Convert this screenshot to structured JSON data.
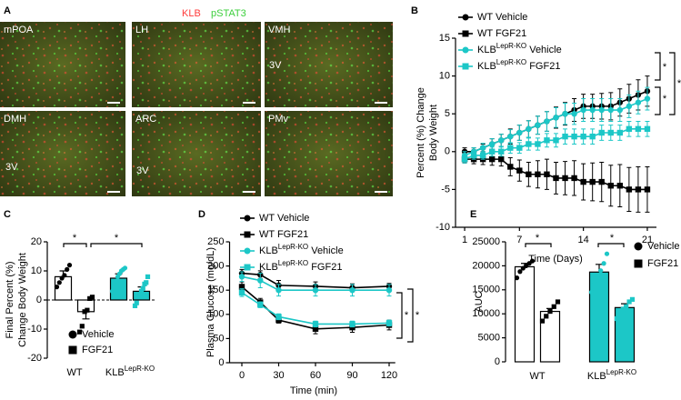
{
  "micrographs": {
    "panel": "A",
    "title": [
      "KLB",
      "pSTAT3"
    ],
    "title_colors": [
      "#ff3b3b",
      "#3ccf3c"
    ],
    "tiles": [
      {
        "label": "mPOA"
      },
      {
        "label": "LH"
      },
      {
        "label": "VMH",
        "marker": "3V"
      },
      {
        "label": "DMH",
        "marker": "3V"
      },
      {
        "label": "ARC",
        "marker": "3V"
      },
      {
        "label": "PMv"
      }
    ]
  },
  "chart_data": [
    {
      "type": "line",
      "panel": "B",
      "x": [
        1,
        2,
        3,
        4,
        5,
        6,
        7,
        8,
        9,
        10,
        11,
        12,
        13,
        14,
        15,
        16,
        17,
        18,
        19,
        20,
        21
      ],
      "xlim": [
        0,
        22
      ],
      "xticks": [
        1,
        7,
        14,
        21
      ],
      "ylim": [
        -10,
        15
      ],
      "yticks": [
        -10,
        -5,
        0,
        5,
        10,
        15
      ],
      "xlabel": "Time (Days)",
      "ylabel": [
        "Percent (%) Change",
        "Body Weight"
      ],
      "series": [
        {
          "name": "WT Vehicle",
          "color": "#000000",
          "marker": "circle",
          "values": [
            0,
            0,
            0.5,
            1,
            1.5,
            2,
            2.5,
            3,
            3.5,
            4,
            4.5,
            5,
            5.5,
            6,
            6,
            6,
            6,
            6.5,
            7,
            7.5,
            8
          ],
          "errors": [
            0.5,
            0.5,
            0.5,
            0.7,
            0.8,
            1,
            1,
            1.1,
            1.2,
            1.3,
            1.4,
            1.5,
            1.5,
            1.6,
            1.6,
            1.7,
            1.8,
            1.8,
            1.9,
            2,
            2
          ]
        },
        {
          "name": "WT FGF21",
          "color": "#000000",
          "marker": "square",
          "values": [
            -1,
            -1,
            -1,
            -1,
            -1,
            -2,
            -2.5,
            -3,
            -3,
            -3,
            -3.5,
            -3.5,
            -3.5,
            -4,
            -4,
            -4,
            -4.5,
            -4.5,
            -5,
            -5,
            -5
          ],
          "errors": [
            0.5,
            0.6,
            0.7,
            0.8,
            0.9,
            1.2,
            1.4,
            1.6,
            1.8,
            2,
            2.1,
            2.2,
            2.3,
            2.4,
            2.5,
            2.6,
            2.7,
            2.8,
            2.9,
            3,
            3
          ]
        },
        {
          "name": [
            "KLB",
            "LepR-KO",
            " Vehicle"
          ],
          "color": "#1cc7c7",
          "marker": "circle",
          "values": [
            -0.5,
            0,
            0.5,
            1,
            1.5,
            2,
            2.5,
            3,
            3.5,
            4,
            4.5,
            5,
            5,
            5.5,
            5.5,
            5.5,
            5.5,
            5.5,
            6,
            6.5,
            7
          ],
          "errors": [
            0.5,
            0.5,
            0.6,
            0.7,
            0.8,
            0.9,
            1,
            1.1,
            1.2,
            1.3,
            1.3,
            1.4,
            1.4,
            1.5,
            1.5,
            1.5,
            1.5,
            1.5,
            1.5,
            1.5,
            1.5
          ]
        },
        {
          "name": [
            "KLB",
            "LepR-KO",
            " FGF21"
          ],
          "color": "#1cc7c7",
          "marker": "square",
          "values": [
            -1,
            -0.5,
            -0.5,
            0,
            0,
            0.5,
            0.5,
            1,
            1,
            1.5,
            1.5,
            2,
            2,
            2,
            2,
            2.5,
            2.5,
            2.5,
            3,
            3,
            3
          ],
          "errors": [
            0.5,
            0.5,
            0.5,
            0.6,
            0.6,
            0.7,
            0.7,
            0.8,
            0.8,
            0.9,
            0.9,
            1,
            1,
            1,
            1,
            1,
            1,
            1,
            1,
            1,
            1
          ]
        }
      ],
      "annotations": [
        "*",
        "*",
        "*"
      ]
    },
    {
      "type": "bar",
      "panel": "C",
      "categories": [
        "WT",
        [
          "KLB",
          "LepR-KO"
        ]
      ],
      "ylim": [
        -20,
        20
      ],
      "yticks": [
        -20,
        -10,
        0,
        10,
        20
      ],
      "ylabel": [
        "Final Percent (%)",
        "Change Body Weight"
      ],
      "zero_line": true,
      "bar_colors": [
        "#ffffff",
        "#1cc7c7"
      ],
      "point_colors": [
        "#000000",
        "#1cc7c7"
      ],
      "series": [
        {
          "name": "Vehicle",
          "marker": "circle",
          "values": [
            8,
            7.5
          ],
          "errors": [
            2,
            1.5
          ],
          "points": [
            [
              4.5,
              6,
              7.5,
              8.5,
              10.5,
              12
            ],
            [
              3,
              5,
              6.5,
              8,
              9,
              10,
              10.5,
              11
            ]
          ]
        },
        {
          "name": "FGF21",
          "marker": "square",
          "values": [
            -4,
            3
          ],
          "errors": [
            2.5,
            1.5
          ],
          "points": [
            [
              -11,
              -9,
              -4,
              -3.5,
              0.5,
              1
            ],
            [
              -2,
              -1,
              1.5,
              2,
              3,
              4,
              5.5,
              6,
              8
            ]
          ]
        }
      ],
      "annotations": [
        "*",
        "*"
      ]
    },
    {
      "type": "line",
      "panel": "D",
      "x": [
        0,
        15,
        30,
        60,
        90,
        120
      ],
      "xlim": [
        -10,
        125
      ],
      "xticks": [
        0,
        30,
        60,
        90,
        120
      ],
      "ylim": [
        0,
        250
      ],
      "yticks": [
        0,
        50,
        100,
        150,
        200,
        250
      ],
      "xlabel": "Time (min)",
      "ylabel": [
        "Plasma Glucose (mg/dL)"
      ],
      "series": [
        {
          "name": "WT Vehicle",
          "color": "#000000",
          "marker": "circle",
          "values": [
            185,
            182,
            160,
            158,
            155,
            158
          ],
          "errors": [
            8,
            8,
            10,
            9,
            8,
            6
          ]
        },
        {
          "name": "WT FGF21",
          "color": "#000000",
          "marker": "square",
          "values": [
            157,
            125,
            88,
            70,
            73,
            78
          ],
          "errors": [
            10,
            8,
            6,
            10,
            10,
            10
          ]
        },
        {
          "name": [
            "KLB",
            "LepR-KO",
            " Vehicle"
          ],
          "color": "#1cc7c7",
          "marker": "circle",
          "values": [
            178,
            170,
            150,
            150,
            150,
            150
          ],
          "errors": [
            10,
            15,
            12,
            12,
            12,
            12
          ]
        },
        {
          "name": [
            "KLB",
            "LepR-KO",
            " FGF21"
          ],
          "color": "#1cc7c7",
          "marker": "square",
          "values": [
            145,
            120,
            95,
            80,
            80,
            82
          ],
          "errors": [
            8,
            6,
            6,
            6,
            6,
            6
          ]
        }
      ],
      "annotations": [
        "*",
        "*"
      ]
    },
    {
      "type": "bar",
      "panel": "E",
      "categories": [
        "WT",
        [
          "KLB",
          "LepR-KO"
        ]
      ],
      "ylim": [
        0,
        25000
      ],
      "yticks": [
        0,
        5000,
        10000,
        15000,
        20000,
        25000
      ],
      "ylabel": [
        "AUC"
      ],
      "zero_line": false,
      "bar_colors": [
        "#ffffff",
        "#1cc7c7"
      ],
      "point_colors": [
        "#000000",
        "#1cc7c7"
      ],
      "series": [
        {
          "name": "Vehicle",
          "marker": "circle",
          "values": [
            19800,
            18700
          ],
          "errors": [
            700,
            1600
          ],
          "points": [
            [
              17500,
              18800,
              19500,
              20000,
              20500,
              21000
            ],
            [
              14500,
              16500,
              18000,
              19000,
              20500,
              22500
            ]
          ]
        },
        {
          "name": "FGF21",
          "marker": "square",
          "values": [
            10500,
            11300
          ],
          "errors": [
            600,
            800
          ],
          "points": [
            [
              8500,
              9500,
              10500,
              11500,
              12500
            ],
            [
              9000,
              10500,
              11000,
              11500,
              12500,
              13000
            ]
          ]
        }
      ],
      "annotations": [
        "*",
        "*"
      ]
    }
  ]
}
